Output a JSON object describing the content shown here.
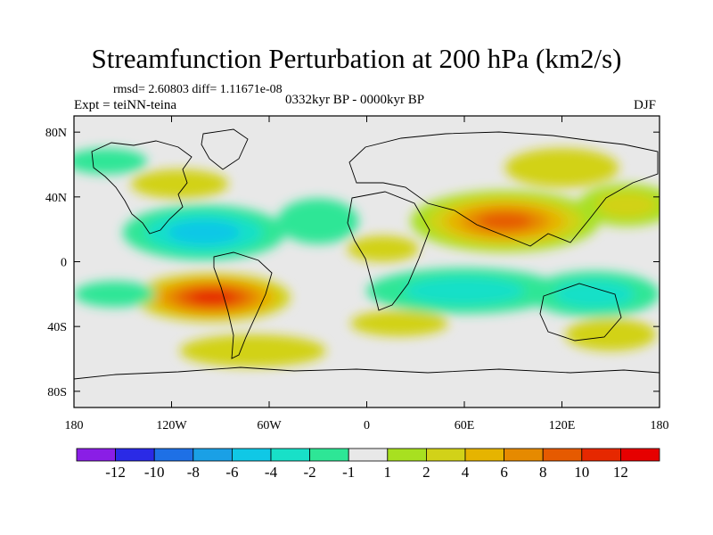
{
  "title": "Streamfunction Perturbation at 200 hPa (km2/s)",
  "stats_line": "rmsd= 2.60803 diff= 1.11671e-08",
  "expt_label": "Expt = teiNN-teina",
  "period_label": "0332kyr BP - 0000kyr BP",
  "season_label": "DJF",
  "map": {
    "projection": "cylindrical equidistant",
    "lon_range": [
      -180,
      180
    ],
    "lat_range": [
      -90,
      90
    ],
    "lon_ticks": [
      {
        "lon": -180,
        "label": "180"
      },
      {
        "lon": -120,
        "label": "120W"
      },
      {
        "lon": -60,
        "label": "60W"
      },
      {
        "lon": 0,
        "label": "0"
      },
      {
        "lon": 60,
        "label": "60E"
      },
      {
        "lon": 120,
        "label": "120E"
      },
      {
        "lon": 180,
        "label": "180"
      }
    ],
    "lat_ticks": [
      {
        "lat": 80,
        "label": "80N"
      },
      {
        "lat": 40,
        "label": "40N"
      },
      {
        "lat": 0,
        "label": "0"
      },
      {
        "lat": -40,
        "label": "40S"
      },
      {
        "lat": -80,
        "label": "80S"
      }
    ]
  },
  "colorbar": {
    "colors": [
      "#8a1ee6",
      "#2a2ae6",
      "#1e70e6",
      "#1aa0e6",
      "#10c8e6",
      "#18e0c8",
      "#2ee696",
      "#e8e8e8",
      "#a8e020",
      "#d2d218",
      "#e6b400",
      "#e68a00",
      "#e65a00",
      "#e62800",
      "#e60000"
    ],
    "labels": [
      "-12",
      "-10",
      "-8",
      "-6",
      "-4",
      "-2",
      "-1",
      "1",
      "2",
      "4",
      "6",
      "8",
      "10",
      "12"
    ]
  },
  "anomalies": [
    {
      "name": "subtropical-high-indian-asia",
      "lon": 85,
      "lat": 25,
      "rx": 58,
      "ry": 19,
      "value": 9
    },
    {
      "name": "south-america-high",
      "lon": -95,
      "lat": -22,
      "rx": 48,
      "ry": 15,
      "value": 10
    },
    {
      "name": "north-pacific-low",
      "lon": -100,
      "lat": 18,
      "rx": 50,
      "ry": 17,
      "value": -6
    },
    {
      "name": "indian-ocean-low",
      "lon": 60,
      "lat": -18,
      "rx": 60,
      "ry": 14,
      "value": -4
    },
    {
      "name": "west-pacific-low",
      "lon": 140,
      "lat": -20,
      "rx": 40,
      "ry": 14,
      "value": -3
    },
    {
      "name": "north-pacific-ridge",
      "lon": 160,
      "lat": 35,
      "rx": 30,
      "ry": 13,
      "value": 3
    },
    {
      "name": "atlantic-low",
      "lon": -30,
      "lat": 25,
      "rx": 25,
      "ry": 14,
      "value": -2
    },
    {
      "name": "africa-ridge",
      "lon": 10,
      "lat": 8,
      "rx": 22,
      "ry": 8,
      "value": 2
    },
    {
      "name": "siberia-ridge",
      "lon": 120,
      "lat": 58,
      "rx": 35,
      "ry": 12,
      "value": 2
    },
    {
      "name": "southern-ocean-ridge",
      "lon": -70,
      "lat": -55,
      "rx": 45,
      "ry": 10,
      "value": 2
    },
    {
      "name": "south-atlantic-ridge",
      "lon": 20,
      "lat": -38,
      "rx": 30,
      "ry": 8,
      "value": 2
    },
    {
      "name": "canada-ridge",
      "lon": -115,
      "lat": 48,
      "rx": 30,
      "ry": 9,
      "value": 2
    },
    {
      "name": "pacific-low-east",
      "lon": -155,
      "lat": -20,
      "rx": 25,
      "ry": 8,
      "value": -2
    },
    {
      "name": "australia-ridge",
      "lon": 150,
      "lat": -45,
      "rx": 28,
      "ry": 10,
      "value": 2
    },
    {
      "name": "arctic-low",
      "lon": -160,
      "lat": 62,
      "rx": 25,
      "ry": 8,
      "value": -2
    }
  ]
}
